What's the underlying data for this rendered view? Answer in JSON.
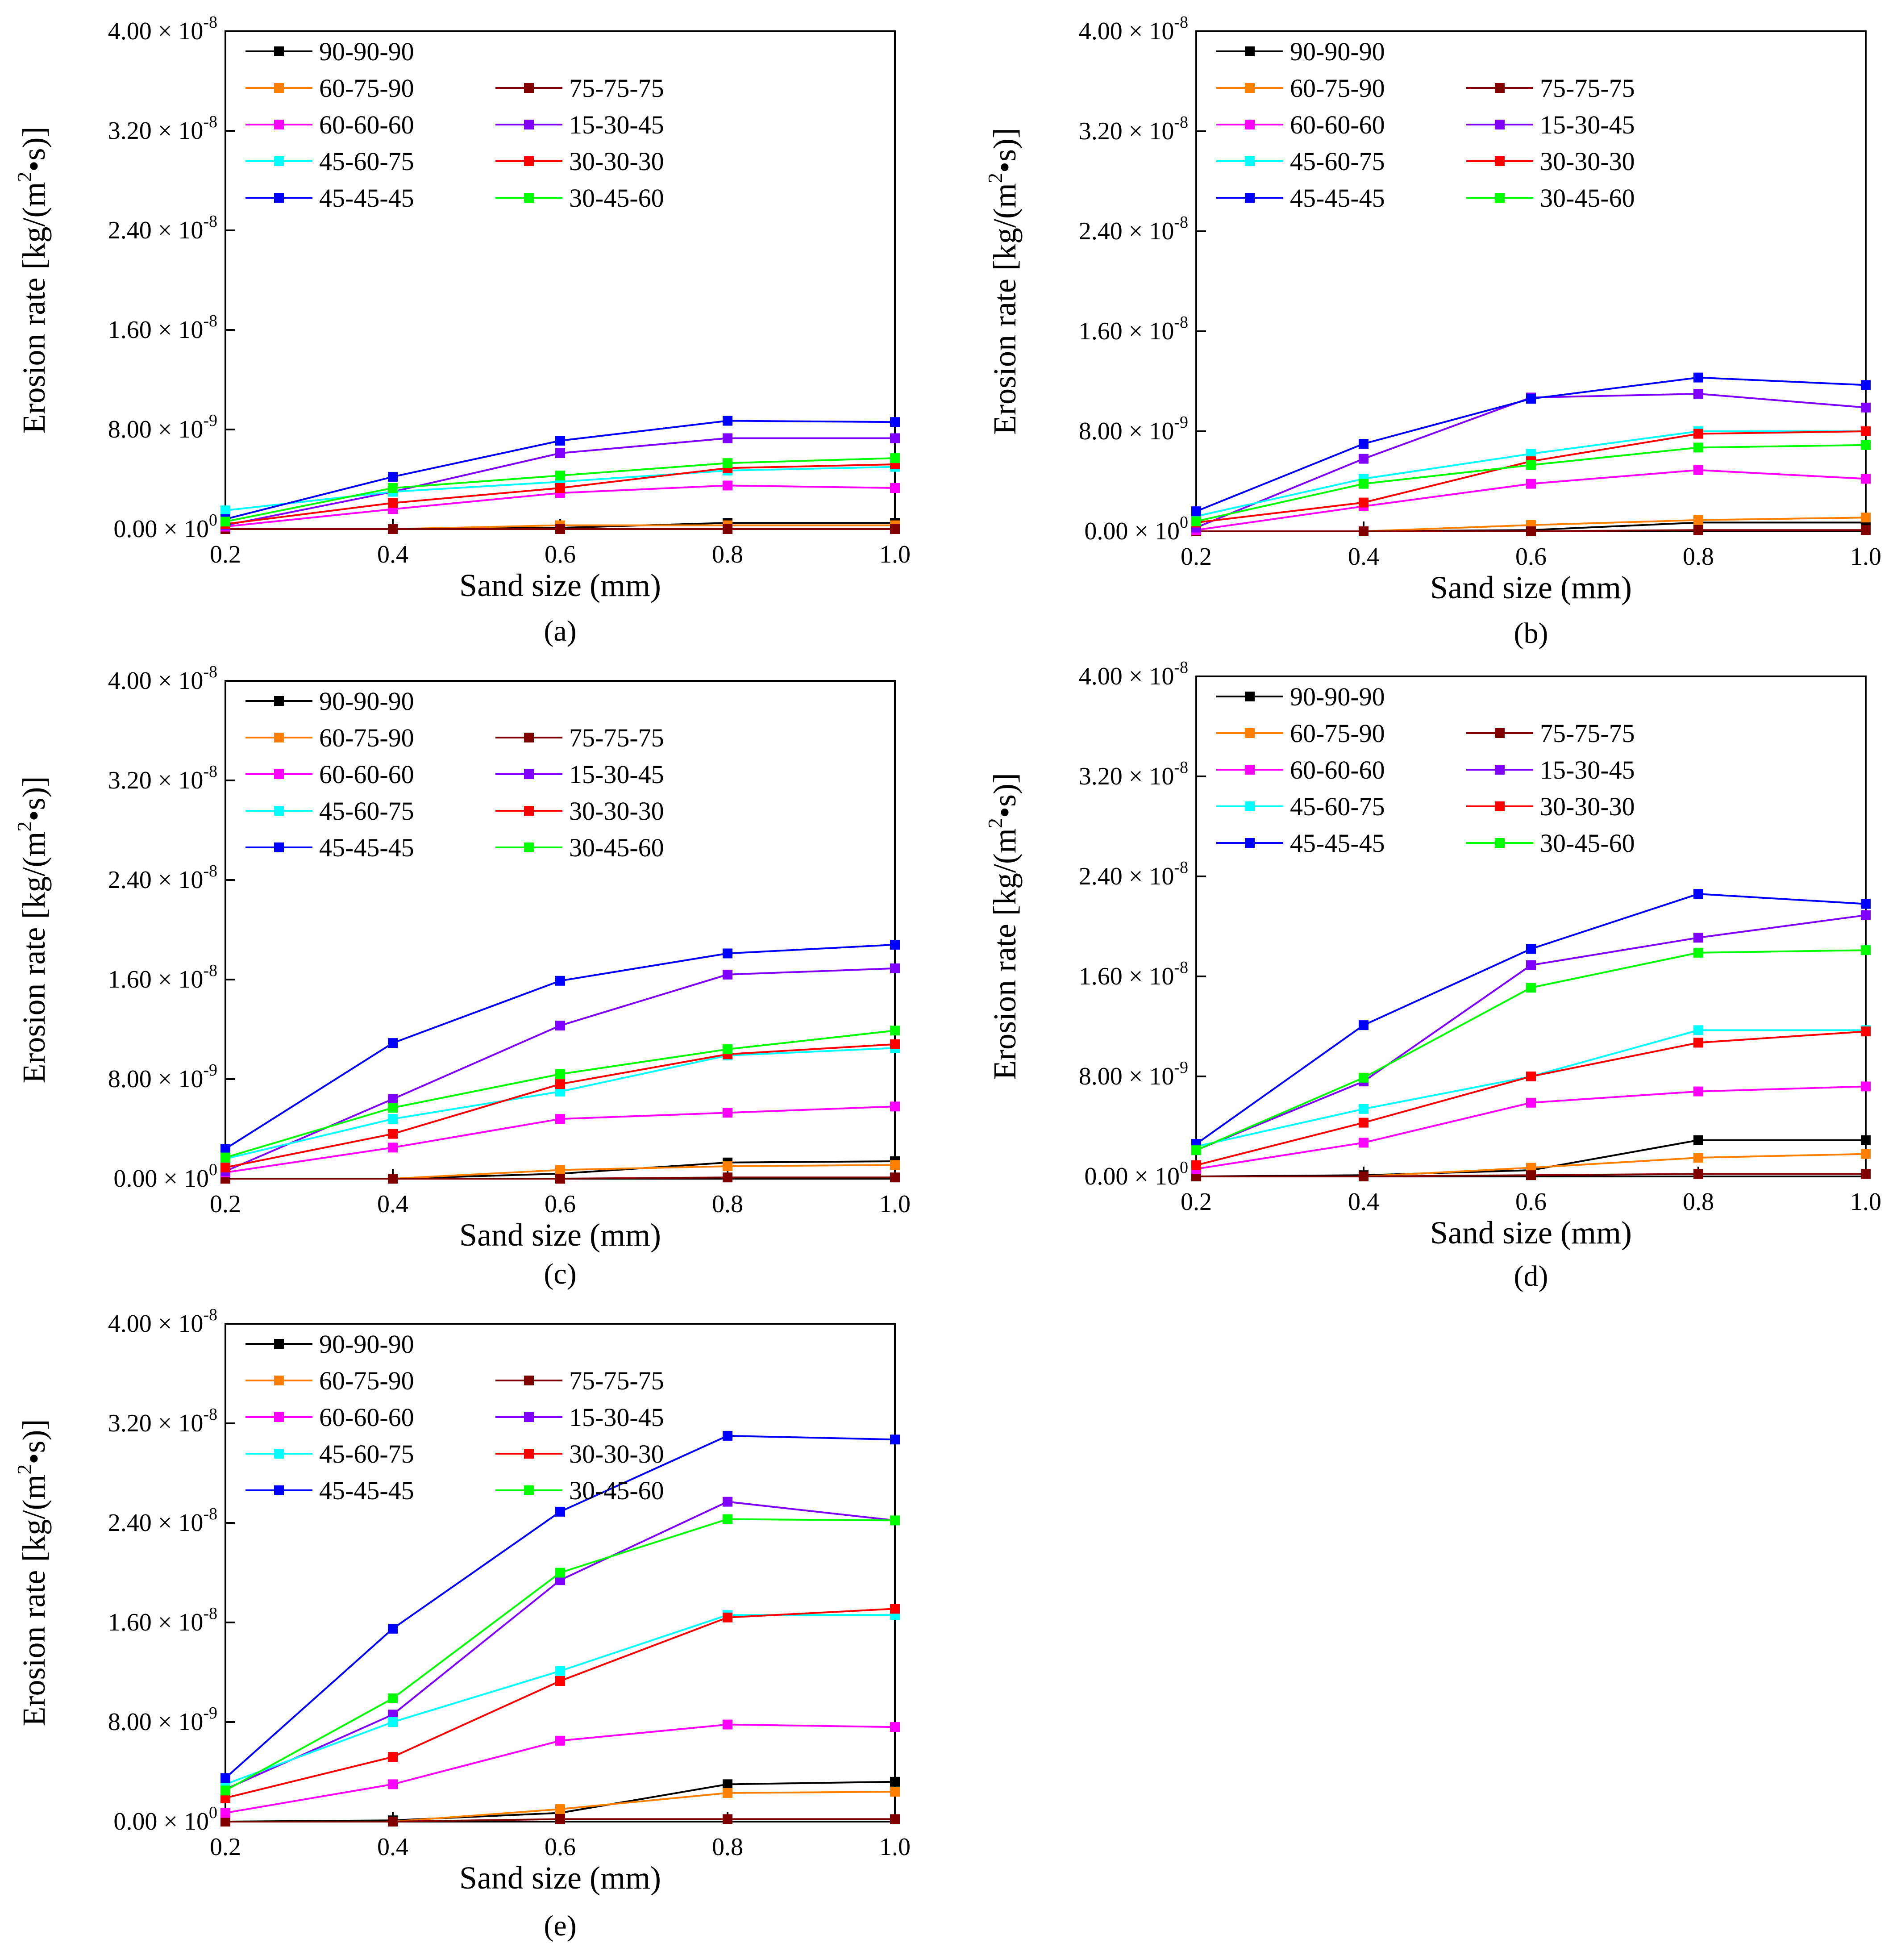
{
  "figure": {
    "series_names": [
      "90-90-90",
      "60-75-90",
      "75-75-75",
      "60-60-60",
      "15-30-45",
      "45-60-75",
      "30-30-30",
      "45-45-45",
      "30-45-60"
    ],
    "colors": {
      "90-90-90": "#000000",
      "60-75-90": "#ff8000",
      "75-75-75": "#800000",
      "60-60-60": "#ff00ff",
      "15-30-45": "#8000ff",
      "45-60-75": "#00ffff",
      "30-30-30": "#ff0000",
      "45-45-45": "#0000ff",
      "30-45-60": "#00ff00"
    }
  },
  "chart_data": [
    {
      "type": "line",
      "panel_label": "(a)",
      "xlabel": "Sand size (mm)",
      "ylabel_main": "Erosion rate [kg/(m",
      "ylabel_sup": "2",
      "ylabel_end": "•s)]",
      "x": [
        0.2,
        0.4,
        0.6,
        0.8,
        1.0
      ],
      "xticks": [
        "0.2",
        "0.4",
        "0.6",
        "0.8",
        "1.0"
      ],
      "yticks": [
        {
          "value": 0,
          "mant": "0.00",
          "exp": "0"
        },
        {
          "value": 8e-09,
          "mant": "8.00",
          "exp": "-9"
        },
        {
          "value": 1.6e-08,
          "mant": "1.60",
          "exp": "-8"
        },
        {
          "value": 2.4e-08,
          "mant": "2.40",
          "exp": "-8"
        },
        {
          "value": 3.2e-08,
          "mant": "3.20",
          "exp": "-8"
        },
        {
          "value": 4e-08,
          "mant": "4.00",
          "exp": "-8"
        }
      ],
      "ylim": [
        0,
        4e-08
      ],
      "xlim": [
        0.2,
        1.0
      ],
      "legend": "top-left",
      "series": [
        {
          "name": "90-90-90",
          "values": [
            0,
            0,
            1e-10,
            5e-10,
            5e-10
          ]
        },
        {
          "name": "60-75-90",
          "values": [
            0,
            0,
            3e-10,
            3e-10,
            3e-10
          ]
        },
        {
          "name": "75-75-75",
          "values": [
            0,
            0,
            0,
            0,
            0
          ]
        },
        {
          "name": "60-60-60",
          "values": [
            2e-10,
            1.6e-09,
            2.9e-09,
            3.5e-09,
            3.3e-09
          ]
        },
        {
          "name": "15-30-45",
          "values": [
            3e-10,
            3e-09,
            6.1e-09,
            7.3e-09,
            7.3e-09
          ]
        },
        {
          "name": "45-60-75",
          "values": [
            1.5e-09,
            3e-09,
            3.8e-09,
            4.7e-09,
            5e-09
          ]
        },
        {
          "name": "30-30-30",
          "values": [
            4e-10,
            2.1e-09,
            3.3e-09,
            4.9e-09,
            5.2e-09
          ]
        },
        {
          "name": "45-45-45",
          "values": [
            8e-10,
            4.2e-09,
            7.1e-09,
            8.7e-09,
            8.6e-09
          ]
        },
        {
          "name": "30-45-60",
          "values": [
            6e-10,
            3.3e-09,
            4.3e-09,
            5.3e-09,
            5.7e-09
          ]
        }
      ]
    },
    {
      "type": "line",
      "panel_label": "(b)",
      "xlabel": "Sand size (mm)",
      "ylabel_main": "Erosion rate [kg/(m",
      "ylabel_sup": "2",
      "ylabel_end": "•s)]",
      "x": [
        0.2,
        0.4,
        0.6,
        0.8,
        1.0
      ],
      "xticks": [
        "0.2",
        "0.4",
        "0.6",
        "0.8",
        "1.0"
      ],
      "yticks": [
        {
          "value": 0,
          "mant": "0.00",
          "exp": "0"
        },
        {
          "value": 8e-09,
          "mant": "8.00",
          "exp": "-9"
        },
        {
          "value": 1.6e-08,
          "mant": "1.60",
          "exp": "-8"
        },
        {
          "value": 2.4e-08,
          "mant": "2.40",
          "exp": "-8"
        },
        {
          "value": 3.2e-08,
          "mant": "3.20",
          "exp": "-8"
        },
        {
          "value": 4e-08,
          "mant": "4.00",
          "exp": "-8"
        }
      ],
      "ylim": [
        0,
        4e-08
      ],
      "xlim": [
        0.2,
        1.0
      ],
      "legend": "top-left",
      "series": [
        {
          "name": "90-90-90",
          "values": [
            0,
            0,
            1e-10,
            7e-10,
            7e-10
          ]
        },
        {
          "name": "60-75-90",
          "values": [
            0,
            0,
            5e-10,
            9e-10,
            1.1e-09
          ]
        },
        {
          "name": "75-75-75",
          "values": [
            0,
            0,
            0,
            1e-10,
            1e-10
          ]
        },
        {
          "name": "60-60-60",
          "values": [
            1e-10,
            2e-09,
            3.8e-09,
            4.9e-09,
            4.2e-09
          ]
        },
        {
          "name": "15-30-45",
          "values": [
            3e-10,
            5.8e-09,
            1.07e-08,
            1.1e-08,
            9.9e-09
          ]
        },
        {
          "name": "45-60-75",
          "values": [
            1.2e-09,
            4.2e-09,
            6.2e-09,
            8e-09,
            8e-09
          ]
        },
        {
          "name": "30-30-30",
          "values": [
            7e-10,
            2.3e-09,
            5.6e-09,
            7.8e-09,
            8e-09
          ]
        },
        {
          "name": "45-45-45",
          "values": [
            1.6e-09,
            7e-09,
            1.06e-08,
            1.23e-08,
            1.17e-08
          ]
        },
        {
          "name": "30-45-60",
          "values": [
            8e-10,
            3.8e-09,
            5.3e-09,
            6.7e-09,
            6.9e-09
          ]
        }
      ]
    },
    {
      "type": "line",
      "panel_label": "(c)",
      "xlabel": "Sand size (mm)",
      "ylabel_main": "Erosion rate [kg/(m",
      "ylabel_sup": "2",
      "ylabel_end": "•s)]",
      "x": [
        0.2,
        0.4,
        0.6,
        0.8,
        1.0
      ],
      "xticks": [
        "0.2",
        "0.4",
        "0.6",
        "0.8",
        "1.0"
      ],
      "yticks": [
        {
          "value": 0,
          "mant": "0.00",
          "exp": "0"
        },
        {
          "value": 8e-09,
          "mant": "8.00",
          "exp": "-9"
        },
        {
          "value": 1.6e-08,
          "mant": "1.60",
          "exp": "-8"
        },
        {
          "value": 2.4e-08,
          "mant": "2.40",
          "exp": "-8"
        },
        {
          "value": 3.2e-08,
          "mant": "3.20",
          "exp": "-8"
        },
        {
          "value": 4e-08,
          "mant": "4.00",
          "exp": "-8"
        }
      ],
      "ylim": [
        0,
        4e-08
      ],
      "xlim": [
        0.2,
        1.0
      ],
      "legend": "top-left",
      "series": [
        {
          "name": "90-90-90",
          "values": [
            0,
            0,
            4e-10,
            1.3e-09,
            1.4e-09
          ]
        },
        {
          "name": "60-75-90",
          "values": [
            0,
            0,
            7e-10,
            1e-09,
            1.1e-09
          ]
        },
        {
          "name": "75-75-75",
          "values": [
            0,
            0,
            0,
            1e-10,
            1e-10
          ]
        },
        {
          "name": "60-60-60",
          "values": [
            5e-10,
            2.5e-09,
            4.8e-09,
            5.3e-09,
            5.8e-09
          ]
        },
        {
          "name": "15-30-45",
          "values": [
            6e-10,
            6.4e-09,
            1.23e-08,
            1.64e-08,
            1.69e-08
          ]
        },
        {
          "name": "45-60-75",
          "values": [
            1.6e-09,
            4.8e-09,
            7e-09,
            9.9e-09,
            1.05e-08
          ]
        },
        {
          "name": "30-30-30",
          "values": [
            9e-10,
            3.6e-09,
            7.6e-09,
            1e-08,
            1.08e-08
          ]
        },
        {
          "name": "45-45-45",
          "values": [
            2.4e-09,
            1.09e-08,
            1.59e-08,
            1.81e-08,
            1.88e-08
          ]
        },
        {
          "name": "30-45-60",
          "values": [
            1.7e-09,
            5.7e-09,
            8.4e-09,
            1.04e-08,
            1.19e-08
          ]
        }
      ]
    },
    {
      "type": "line",
      "panel_label": "(d)",
      "xlabel": "Sand size (mm)",
      "ylabel_main": "Erosion rate [kg/(m",
      "ylabel_sup": "2",
      "ylabel_end": "•s)]",
      "x": [
        0.2,
        0.4,
        0.6,
        0.8,
        1.0
      ],
      "xticks": [
        "0.2",
        "0.4",
        "0.6",
        "0.8",
        "1.0"
      ],
      "yticks": [
        {
          "value": 0,
          "mant": "0.00",
          "exp": "0"
        },
        {
          "value": 8e-09,
          "mant": "8.00",
          "exp": "-9"
        },
        {
          "value": 1.6e-08,
          "mant": "1.60",
          "exp": "-8"
        },
        {
          "value": 2.4e-08,
          "mant": "2.40",
          "exp": "-8"
        },
        {
          "value": 3.2e-08,
          "mant": "3.20",
          "exp": "-8"
        },
        {
          "value": 4e-08,
          "mant": "4.00",
          "exp": "-8"
        }
      ],
      "ylim": [
        0,
        4e-08
      ],
      "xlim": [
        0.2,
        1.0
      ],
      "legend": "top-left",
      "series": [
        {
          "name": "90-90-90",
          "values": [
            0,
            1e-10,
            5e-10,
            2.9e-09,
            2.9e-09
          ]
        },
        {
          "name": "60-75-90",
          "values": [
            0,
            0,
            7e-10,
            1.5e-09,
            1.8e-09
          ]
        },
        {
          "name": "75-75-75",
          "values": [
            0,
            0,
            1e-10,
            2e-10,
            2e-10
          ]
        },
        {
          "name": "60-60-60",
          "values": [
            6e-10,
            2.7e-09,
            5.9e-09,
            6.8e-09,
            7.2e-09
          ]
        },
        {
          "name": "15-30-45",
          "values": [
            2.1e-09,
            7.6e-09,
            1.69e-08,
            1.91e-08,
            2.09e-08
          ]
        },
        {
          "name": "45-60-75",
          "values": [
            2.4e-09,
            5.4e-09,
            8e-09,
            1.17e-08,
            1.17e-08
          ]
        },
        {
          "name": "30-30-30",
          "values": [
            9e-10,
            4.3e-09,
            8e-09,
            1.07e-08,
            1.16e-08
          ]
        },
        {
          "name": "45-45-45",
          "values": [
            2.6e-09,
            1.21e-08,
            1.82e-08,
            2.26e-08,
            2.18e-08
          ]
        },
        {
          "name": "30-45-60",
          "values": [
            2.1e-09,
            7.9e-09,
            1.51e-08,
            1.79e-08,
            1.81e-08
          ]
        }
      ]
    },
    {
      "type": "line",
      "panel_label": "(e)",
      "xlabel": "Sand size (mm)",
      "ylabel_main": "Erosion rate [kg/(m",
      "ylabel_sup": "2",
      "ylabel_end": "•s)]",
      "x": [
        0.2,
        0.4,
        0.6,
        0.8,
        1.0
      ],
      "xticks": [
        "0.2",
        "0.4",
        "0.6",
        "0.8",
        "1.0"
      ],
      "yticks": [
        {
          "value": 0,
          "mant": "0.00",
          "exp": "0"
        },
        {
          "value": 8e-09,
          "mant": "8.00",
          "exp": "-9"
        },
        {
          "value": 1.6e-08,
          "mant": "1.60",
          "exp": "-8"
        },
        {
          "value": 2.4e-08,
          "mant": "2.40",
          "exp": "-8"
        },
        {
          "value": 3.2e-08,
          "mant": "3.20",
          "exp": "-8"
        },
        {
          "value": 4e-08,
          "mant": "4.00",
          "exp": "-8"
        }
      ],
      "ylim": [
        0,
        4e-08
      ],
      "xlim": [
        0.2,
        1.0
      ],
      "legend": "top-left",
      "series": [
        {
          "name": "90-90-90",
          "values": [
            0,
            1e-10,
            7e-10,
            3e-09,
            3.2e-09
          ]
        },
        {
          "name": "60-75-90",
          "values": [
            0,
            0,
            1e-09,
            2.3e-09,
            2.4e-09
          ]
        },
        {
          "name": "75-75-75",
          "values": [
            0,
            0,
            2e-10,
            2e-10,
            2e-10
          ]
        },
        {
          "name": "60-60-60",
          "values": [
            7e-10,
            3e-09,
            6.5e-09,
            7.8e-09,
            7.6e-09
          ]
        },
        {
          "name": "15-30-45",
          "values": [
            2.6e-09,
            8.6e-09,
            1.94e-08,
            2.57e-08,
            2.42e-08
          ]
        },
        {
          "name": "45-60-75",
          "values": [
            3e-09,
            8e-09,
            1.21e-08,
            1.66e-08,
            1.66e-08
          ]
        },
        {
          "name": "30-30-30",
          "values": [
            1.9e-09,
            5.2e-09,
            1.13e-08,
            1.64e-08,
            1.71e-08
          ]
        },
        {
          "name": "45-45-45",
          "values": [
            3.5e-09,
            1.55e-08,
            2.49e-08,
            3.1e-08,
            3.07e-08
          ]
        },
        {
          "name": "30-45-60",
          "values": [
            2.5e-09,
            9.9e-09,
            2e-08,
            2.43e-08,
            2.42e-08
          ]
        }
      ]
    }
  ]
}
